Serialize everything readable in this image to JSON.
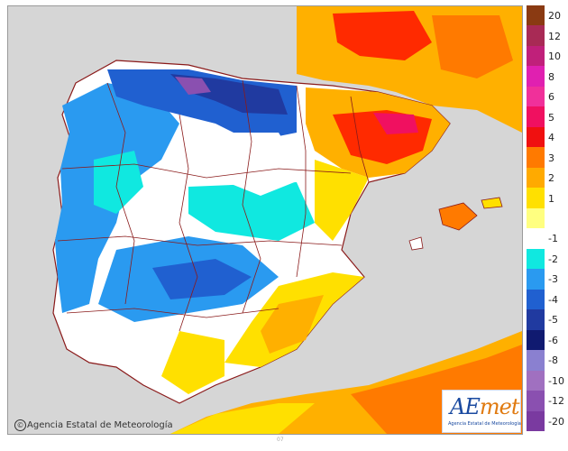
{
  "legend": {
    "entries": [
      {
        "label": "20",
        "color": "#8a3a12"
      },
      {
        "label": "12",
        "color": "#a82a55"
      },
      {
        "label": "10",
        "color": "#c0207a"
      },
      {
        "label": "8",
        "color": "#e020b0"
      },
      {
        "label": "6",
        "color": "#f0309a"
      },
      {
        "label": "5",
        "color": "#f01060"
      },
      {
        "label": "4",
        "color": "#f01010"
      },
      {
        "label": "3",
        "color": "#ff7a00"
      },
      {
        "label": "2",
        "color": "#ffaa00"
      },
      {
        "label": "1",
        "color": "#ffe000"
      },
      {
        "label": "",
        "color": "#ffff80"
      },
      {
        "label": "-1",
        "color": "#ffffff"
      },
      {
        "label": "-2",
        "color": "#10e8e0"
      },
      {
        "label": "-3",
        "color": "#2a9af0"
      },
      {
        "label": "-4",
        "color": "#2060d0"
      },
      {
        "label": "-5",
        "color": "#203aa0"
      },
      {
        "label": "-6",
        "color": "#101a70"
      },
      {
        "label": "-8",
        "color": "#8a80d0"
      },
      {
        "label": "-10",
        "color": "#a070c0"
      },
      {
        "label": "-12",
        "color": "#8a50b0"
      },
      {
        "label": "-20",
        "color": "#7a3aa0"
      }
    ]
  },
  "credit": {
    "text": "Agencia Estatal de Meteorología",
    "icon": "©"
  },
  "logo": {
    "brand_a": "AE",
    "brand_b": "met",
    "subtitle": "Agencia Estatal de Meteorología"
  },
  "bottom_note": "07"
}
